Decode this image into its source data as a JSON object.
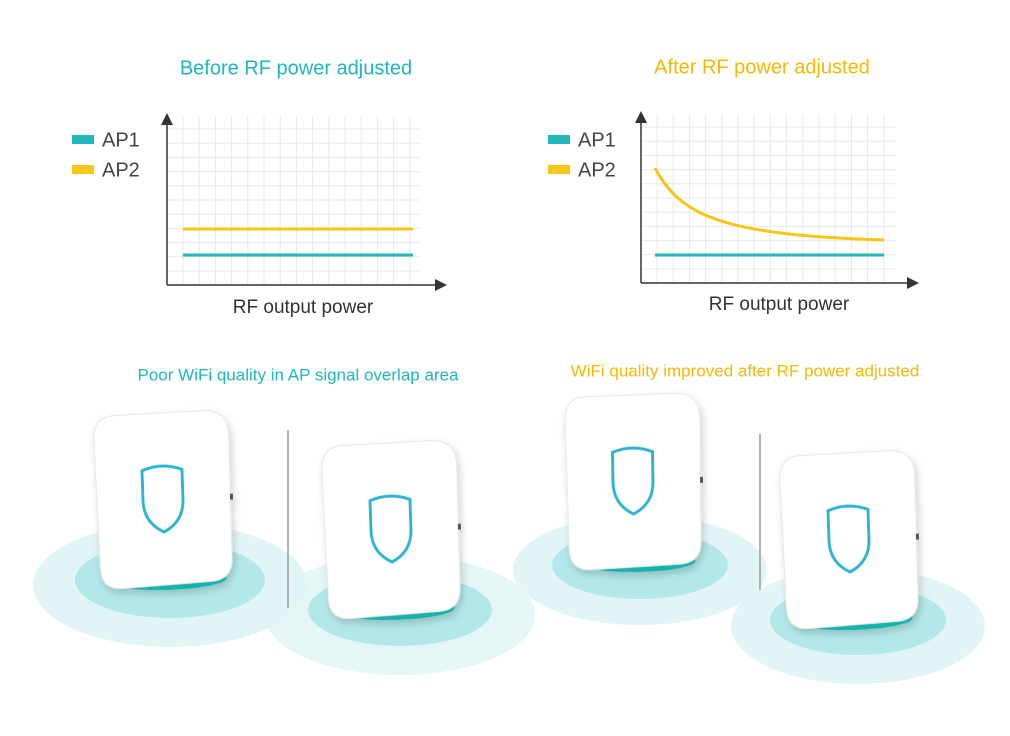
{
  "before": {
    "title": "Before RF power adjusted",
    "legend": [
      "AP1",
      "AP2"
    ],
    "x_axis_label": "RF output power",
    "caption": "Poor WiFi quality in AP signal overlap area"
  },
  "after": {
    "title": "After RF power adjusted",
    "legend": [
      "AP1",
      "AP2"
    ],
    "x_axis_label": "RF output power",
    "caption": "WiFi quality improved after RF power adjusted"
  }
}
